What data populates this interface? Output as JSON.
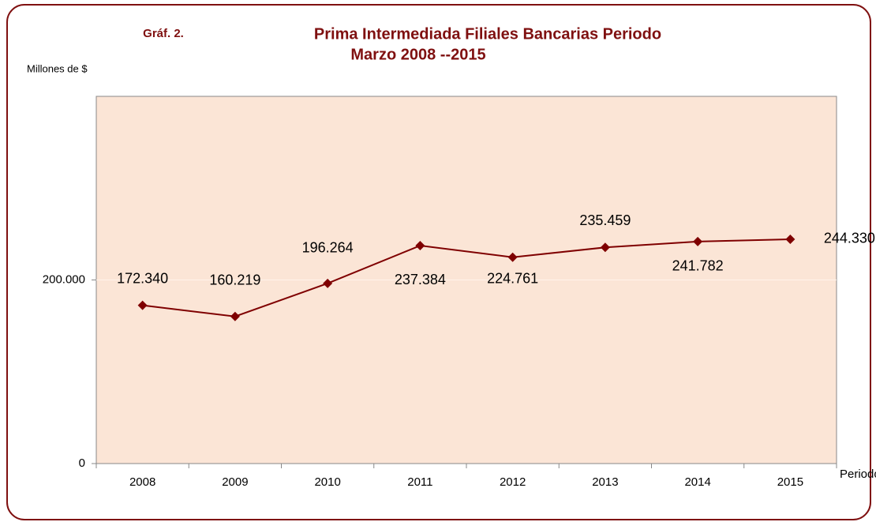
{
  "chart_data": {
    "type": "line",
    "label": "Gráf. 2.",
    "title": "Prima Intermediada Filiales  Bancarias Periodo",
    "subtitle": "Marzo 2008 --2015",
    "y_label": "Millones de $",
    "x_label": "Periodo",
    "categories": [
      "2008",
      "2009",
      "2010",
      "2011",
      "2012",
      "2013",
      "2014",
      "2015"
    ],
    "values": [
      172340,
      160219,
      196264,
      237384,
      224761,
      235459,
      241782,
      244330
    ],
    "value_labels": [
      "172.340",
      "160.219",
      "196.264",
      "237.384",
      "224.761",
      "235.459",
      "241.782",
      "244.330"
    ],
    "color": "#7f0000",
    "ylim": [
      0,
      400000
    ],
    "yticks": [
      0,
      {
        "value": 200000,
        "label": "200.000"
      }
    ],
    "grid": true
  }
}
